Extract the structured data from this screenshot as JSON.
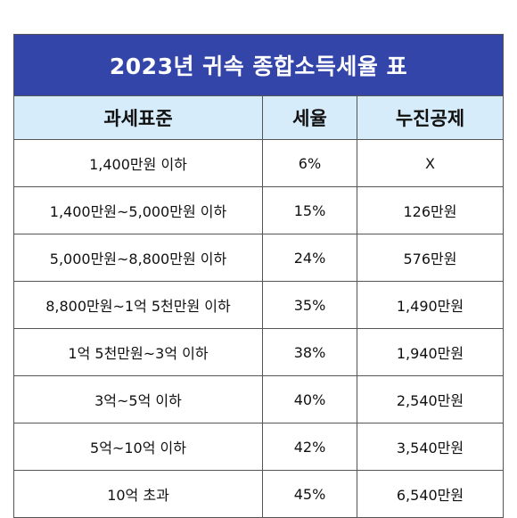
{
  "table": {
    "title": "2023년 귀속 종합소득세율 표",
    "headers": [
      "과세표준",
      "세율",
      "누진공제"
    ],
    "rows": [
      [
        "1,400만원 이하",
        "6%",
        "X"
      ],
      [
        "1,400만원~5,000만원 이하",
        "15%",
        "126만원"
      ],
      [
        "5,000만원~8,800만원 이하",
        "24%",
        "576만원"
      ],
      [
        "8,800만원~1억 5천만원 이하",
        "35%",
        "1,490만원"
      ],
      [
        "1억 5천만원~3억 이하",
        "38%",
        "1,940만원"
      ],
      [
        "3억~5억 이하",
        "40%",
        "2,540만원"
      ],
      [
        "5억~10억 이하",
        "42%",
        "3,540만원"
      ],
      [
        "10억 초과",
        "45%",
        "6,540만원"
      ]
    ]
  },
  "colors": {
    "title_background": "#3345a8",
    "header_background": "#d6ecfa",
    "border": "#555555"
  }
}
